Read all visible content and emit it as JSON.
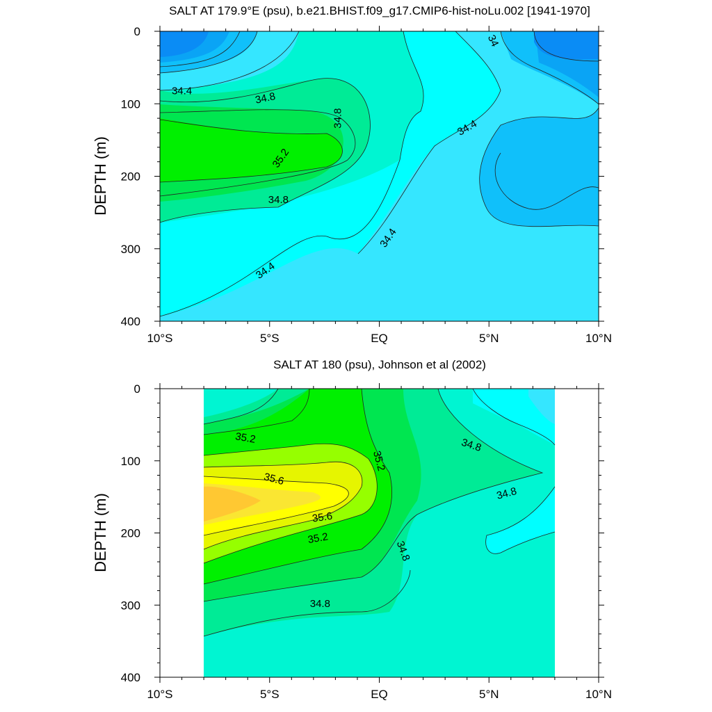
{
  "colors": {
    "contour_lines": "#222222",
    "frame": "#000000",
    "background": "#ffffff"
  },
  "chart_data": [
    {
      "type": "contour",
      "title": "SALT AT 179.9°E (psu), b.e21.BHIST.f09_g17.CMIP6-hist-noLu.002 [1941-1970]",
      "ylabel": "DEPTH (m)",
      "xlabel": "",
      "x_tick_labels": [
        "10°S",
        "5°S",
        "EQ",
        "5°N",
        "10°N"
      ],
      "x_tick_values": [
        -10,
        -5,
        0,
        5,
        10
      ],
      "y_tick_labels": [
        "0",
        "100",
        "200",
        "300",
        "400"
      ],
      "y_tick_values": [
        0,
        100,
        200,
        300,
        400
      ],
      "xlim": [
        -10,
        10
      ],
      "ylim": [
        400,
        0
      ],
      "data_xlim": [
        -10,
        10
      ],
      "contour_interval": 0.2,
      "fill_levels": [
        {
          "min": 33.6,
          "max": 33.8,
          "color": "#0a8cf5"
        },
        {
          "min": 33.8,
          "max": 34.0,
          "color": "#0aa4f5"
        },
        {
          "min": 34.0,
          "max": 34.2,
          "color": "#10c0fa"
        },
        {
          "min": 34.2,
          "max": 34.4,
          "color": "#35e6ff"
        },
        {
          "min": 34.4,
          "max": 34.6,
          "color": "#00ffff"
        },
        {
          "min": 34.6,
          "max": 34.8,
          "color": "#00f5d2"
        },
        {
          "min": 34.8,
          "max": 35.0,
          "color": "#00eb96"
        },
        {
          "min": 35.0,
          "max": 35.2,
          "color": "#00e650"
        },
        {
          "min": 35.2,
          "max": 35.4,
          "color": "#00f000"
        }
      ],
      "contour_labels": [
        {
          "text": "34.4",
          "lat": -9.0,
          "depth": 82,
          "angle": 0
        },
        {
          "text": "34.8",
          "lat": -5.2,
          "depth": 92,
          "angle": -12
        },
        {
          "text": "35.2",
          "lat": -4.5,
          "depth": 175,
          "angle": -55
        },
        {
          "text": "34.8",
          "lat": -1.9,
          "depth": 120,
          "angle": -90
        },
        {
          "text": "34.4",
          "lat": 4.0,
          "depth": 133,
          "angle": -30
        },
        {
          "text": "34",
          "lat": 5.2,
          "depth": 13,
          "angle": 65
        },
        {
          "text": "34.8",
          "lat": -4.6,
          "depth": 232,
          "angle": 0
        },
        {
          "text": "34.4",
          "lat": 0.4,
          "depth": 285,
          "angle": -55
        },
        {
          "text": "34.4",
          "lat": -5.2,
          "depth": 330,
          "angle": -35
        }
      ]
    },
    {
      "type": "contour",
      "title": "SALT AT 180 (psu), Johnson et al (2002)",
      "ylabel": "DEPTH (m)",
      "xlabel": "",
      "x_tick_labels": [
        "10°S",
        "5°S",
        "EQ",
        "5°N",
        "10°N"
      ],
      "x_tick_values": [
        -10,
        -5,
        0,
        5,
        10
      ],
      "y_tick_labels": [
        "0",
        "100",
        "200",
        "300",
        "400"
      ],
      "y_tick_values": [
        0,
        100,
        200,
        300,
        400
      ],
      "xlim": [
        -10,
        10
      ],
      "ylim": [
        400,
        0
      ],
      "data_xlim": [
        -8,
        8
      ],
      "contour_interval": 0.2,
      "fill_levels": [
        {
          "min": 34.2,
          "max": 34.4,
          "color": "#35e6ff"
        },
        {
          "min": 34.4,
          "max": 34.6,
          "color": "#00ffff"
        },
        {
          "min": 34.6,
          "max": 34.8,
          "color": "#00f5d2"
        },
        {
          "min": 34.8,
          "max": 35.0,
          "color": "#00eb96"
        },
        {
          "min": 35.0,
          "max": 35.2,
          "color": "#00e650"
        },
        {
          "min": 35.2,
          "max": 35.4,
          "color": "#00f000"
        },
        {
          "min": 35.4,
          "max": 35.6,
          "color": "#96ff00"
        },
        {
          "min": 35.6,
          "max": 35.8,
          "color": "#e6f500"
        },
        {
          "min": 35.8,
          "max": 36.0,
          "color": "#ffff00"
        },
        {
          "min": 36.0,
          "max": 36.2,
          "color": "#fae632"
        },
        {
          "min": 36.2,
          "max": 36.4,
          "color": "#ffc832"
        }
      ],
      "contour_labels": [
        {
          "text": "35.2",
          "lat": -6.1,
          "depth": 68,
          "angle": 10
        },
        {
          "text": "35.2",
          "lat": 0.0,
          "depth": 100,
          "angle": 75
        },
        {
          "text": "34.8",
          "lat": 4.2,
          "depth": 78,
          "angle": 18
        },
        {
          "text": "35.6",
          "lat": -4.8,
          "depth": 125,
          "angle": 15
        },
        {
          "text": "34.8",
          "lat": 5.8,
          "depth": 145,
          "angle": -15
        },
        {
          "text": "35.6",
          "lat": -2.6,
          "depth": 178,
          "angle": -8
        },
        {
          "text": "35.2",
          "lat": -2.8,
          "depth": 207,
          "angle": -10
        },
        {
          "text": "34.8",
          "lat": 1.1,
          "depth": 225,
          "angle": 70
        },
        {
          "text": "34.8",
          "lat": -2.7,
          "depth": 298,
          "angle": 0
        }
      ]
    }
  ]
}
